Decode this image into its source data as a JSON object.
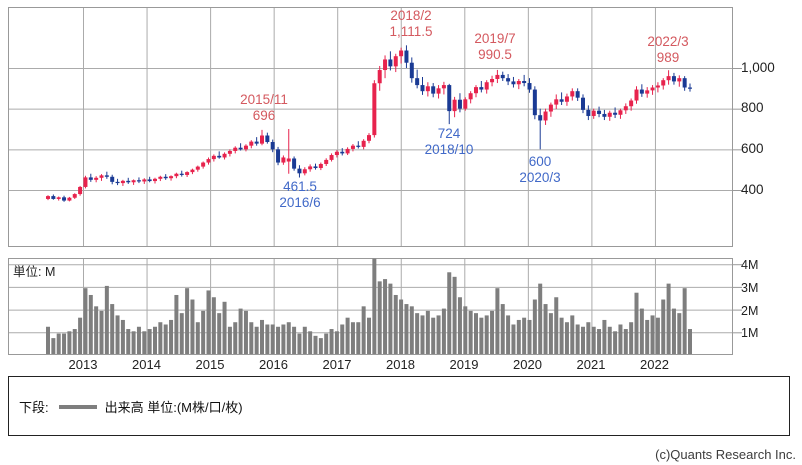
{
  "colors": {
    "up": "#e7234d",
    "down": "#1a3a94",
    "volume_bar": "#7e7e7e",
    "grid": "#ababab",
    "border": "#999999",
    "ann_red": "#d4595f",
    "ann_blue": "#4169c8",
    "axis_text": "#222222"
  },
  "legend": {
    "prefix": "下段:",
    "label": "出来高 単位:(M株/口/枚)"
  },
  "footer": {
    "copyright": "(c)Quants Research Inc."
  },
  "chart_data": {
    "type": "candlestick+volume-bar",
    "title": "",
    "price_axis": {
      "side": "right",
      "ticks": [
        400,
        600,
        800,
        1000
      ],
      "labels": [
        "400",
        "600",
        "800",
        "1,000"
      ]
    },
    "volume_axis": {
      "side": "right",
      "unit_label": "単位: M",
      "ticks": [
        1,
        2,
        3,
        4
      ],
      "labels": [
        "1M",
        "2M",
        "3M",
        "4M"
      ]
    },
    "x_axis": {
      "years": [
        "2013",
        "2014",
        "2015",
        "2016",
        "2017",
        "2018",
        "2019",
        "2020",
        "2021",
        "2022"
      ],
      "grid": true
    },
    "annotations": [
      {
        "kind": "high",
        "line1": "2018/2",
        "line2": "1,111.5"
      },
      {
        "kind": "high",
        "line1": "2019/7",
        "line2": "990.5"
      },
      {
        "kind": "high",
        "line1": "2022/3",
        "line2": "989"
      },
      {
        "kind": "high",
        "line1": "2015/11",
        "line2": "696"
      },
      {
        "kind": "low",
        "line1": "724",
        "line2": "2018/10"
      },
      {
        "kind": "low",
        "line1": "600",
        "line2": "2020/3"
      },
      {
        "kind": "low",
        "line1": "461.5",
        "line2": "2016/6"
      }
    ],
    "candles_note": "monthly OHLC, 2012/07 - 2022/07, values in yen",
    "candles": [
      [
        356,
        374,
        350,
        370
      ],
      [
        370,
        378,
        352,
        356
      ],
      [
        356,
        368,
        348,
        364
      ],
      [
        364,
        372,
        342,
        348
      ],
      [
        348,
        366,
        344,
        362
      ],
      [
        362,
        384,
        356,
        380
      ],
      [
        380,
        420,
        372,
        415
      ],
      [
        415,
        470,
        408,
        462
      ],
      [
        462,
        480,
        440,
        450
      ],
      [
        450,
        468,
        438,
        460
      ],
      [
        460,
        478,
        445,
        472
      ],
      [
        472,
        490,
        455,
        465
      ],
      [
        465,
        475,
        428,
        440
      ],
      [
        440,
        455,
        424,
        434
      ],
      [
        434,
        450,
        420,
        445
      ],
      [
        445,
        460,
        430,
        438
      ],
      [
        438,
        452,
        425,
        448
      ],
      [
        448,
        462,
        434,
        442
      ],
      [
        442,
        458,
        430,
        452
      ],
      [
        452,
        465,
        438,
        444
      ],
      [
        444,
        460,
        432,
        455
      ],
      [
        455,
        470,
        444,
        465
      ],
      [
        465,
        478,
        450,
        458
      ],
      [
        458,
        472,
        446,
        468
      ],
      [
        468,
        485,
        458,
        480
      ],
      [
        480,
        495,
        466,
        474
      ],
      [
        474,
        492,
        464,
        488
      ],
      [
        488,
        505,
        478,
        500
      ],
      [
        500,
        520,
        490,
        515
      ],
      [
        515,
        540,
        505,
        535
      ],
      [
        535,
        560,
        525,
        552
      ],
      [
        552,
        575,
        540,
        568
      ],
      [
        568,
        590,
        554,
        560
      ],
      [
        560,
        585,
        550,
        578
      ],
      [
        578,
        600,
        565,
        592
      ],
      [
        592,
        615,
        580,
        608
      ],
      [
        608,
        630,
        594,
        600
      ],
      [
        600,
        625,
        590,
        618
      ],
      [
        618,
        645,
        605,
        638
      ],
      [
        638,
        660,
        618,
        628
      ],
      [
        628,
        696,
        620,
        668
      ],
      [
        668,
        682,
        628,
        636
      ],
      [
        636,
        648,
        586,
        600
      ],
      [
        600,
        612,
        522,
        535
      ],
      [
        535,
        570,
        524,
        560
      ],
      [
        540,
        700,
        480,
        555
      ],
      [
        555,
        565,
        495,
        505
      ],
      [
        505,
        522,
        461.5,
        482
      ],
      [
        482,
        512,
        472,
        502
      ],
      [
        502,
        526,
        490,
        516
      ],
      [
        516,
        530,
        500,
        508
      ],
      [
        508,
        535,
        498,
        528
      ],
      [
        528,
        556,
        518,
        548
      ],
      [
        548,
        580,
        540,
        572
      ],
      [
        572,
        596,
        560,
        588
      ],
      [
        588,
        606,
        570,
        580
      ],
      [
        580,
        610,
        572,
        602
      ],
      [
        602,
        626,
        590,
        618
      ],
      [
        618,
        640,
        604,
        612
      ],
      [
        612,
        650,
        600,
        642
      ],
      [
        642,
        680,
        630,
        670
      ],
      [
        670,
        940,
        658,
        925
      ],
      [
        925,
        1010,
        888,
        990
      ],
      [
        990,
        1062,
        950,
        1042
      ],
      [
        1042,
        1082,
        988,
        1008
      ],
      [
        1008,
        1070,
        980,
        1058
      ],
      [
        1058,
        1100,
        1022,
        1086
      ],
      [
        1086,
        1111.5,
        1000,
        1026
      ],
      [
        1026,
        1052,
        928,
        950
      ],
      [
        950,
        992,
        900,
        916
      ],
      [
        916,
        956,
        868,
        886
      ],
      [
        886,
        930,
        860,
        910
      ],
      [
        910,
        926,
        856,
        874
      ],
      [
        874,
        916,
        850,
        900
      ],
      [
        900,
        932,
        870,
        916
      ],
      [
        916,
        922,
        724,
        788
      ],
      [
        788,
        858,
        758,
        844
      ],
      [
        844,
        876,
        782,
        800
      ],
      [
        800,
        856,
        790,
        846
      ],
      [
        846,
        886,
        826,
        876
      ],
      [
        876,
        916,
        856,
        906
      ],
      [
        906,
        936,
        880,
        894
      ],
      [
        894,
        940,
        874,
        930
      ],
      [
        930,
        962,
        910,
        946
      ],
      [
        946,
        990.5,
        926,
        966
      ],
      [
        966,
        982,
        936,
        950
      ],
      [
        950,
        970,
        916,
        934
      ],
      [
        934,
        956,
        904,
        920
      ],
      [
        920,
        946,
        896,
        936
      ],
      [
        936,
        966,
        910,
        926
      ],
      [
        926,
        950,
        878,
        894
      ],
      [
        894,
        910,
        748,
        768
      ],
      [
        768,
        800,
        600,
        742
      ],
      [
        742,
        800,
        720,
        786
      ],
      [
        786,
        830,
        760,
        820
      ],
      [
        820,
        870,
        798,
        846
      ],
      [
        846,
        880,
        818,
        834
      ],
      [
        834,
        874,
        814,
        860
      ],
      [
        860,
        900,
        840,
        886
      ],
      [
        886,
        900,
        838,
        854
      ],
      [
        854,
        870,
        778,
        794
      ],
      [
        794,
        816,
        744,
        764
      ],
      [
        764,
        800,
        750,
        790
      ],
      [
        790,
        810,
        758,
        774
      ],
      [
        774,
        794,
        744,
        760
      ],
      [
        760,
        790,
        740,
        780
      ],
      [
        780,
        806,
        754,
        770
      ],
      [
        770,
        800,
        750,
        792
      ],
      [
        792,
        826,
        774,
        812
      ],
      [
        812,
        850,
        790,
        840
      ],
      [
        840,
        910,
        824,
        894
      ],
      [
        894,
        920,
        858,
        874
      ],
      [
        874,
        906,
        854,
        890
      ],
      [
        890,
        916,
        868,
        904
      ],
      [
        904,
        930,
        880,
        914
      ],
      [
        914,
        950,
        894,
        940
      ],
      [
        940,
        989,
        918,
        960
      ],
      [
        960,
        976,
        918,
        934
      ],
      [
        934,
        964,
        908,
        950
      ],
      [
        950,
        960,
        888,
        904
      ],
      [
        904,
        924,
        884,
        898
      ]
    ],
    "volumes_note": "monthly volume in millions (M)",
    "volumes": [
      1.2,
      0.7,
      0.9,
      0.9,
      1.0,
      1.1,
      1.6,
      2.9,
      2.6,
      2.1,
      1.9,
      3.0,
      2.2,
      1.7,
      1.5,
      1.1,
      1.0,
      1.2,
      1.0,
      1.1,
      1.2,
      1.4,
      1.3,
      1.5,
      2.6,
      1.8,
      2.9,
      2.4,
      1.4,
      1.9,
      2.8,
      2.5,
      1.8,
      2.3,
      1.2,
      1.4,
      2.0,
      1.9,
      1.4,
      1.2,
      1.5,
      1.3,
      1.3,
      1.2,
      1.3,
      1.4,
      1.2,
      0.9,
      1.2,
      1.0,
      0.8,
      0.7,
      0.9,
      1.1,
      1.0,
      1.3,
      1.6,
      1.4,
      1.4,
      2.1,
      1.6,
      4.2,
      3.2,
      3.3,
      3.1,
      2.6,
      2.4,
      2.2,
      2.1,
      1.8,
      1.7,
      1.9,
      1.6,
      1.7,
      2.0,
      3.6,
      3.4,
      2.5,
      2.1,
      1.9,
      1.8,
      1.6,
      1.7,
      1.9,
      2.9,
      2.2,
      1.7,
      1.3,
      1.5,
      1.6,
      1.5,
      2.4,
      3.1,
      2.2,
      1.8,
      2.5,
      1.6,
      1.4,
      1.7,
      1.3,
      1.2,
      1.4,
      1.2,
      1.1,
      1.5,
      1.2,
      1.0,
      1.3,
      1.1,
      1.4,
      2.7,
      2.0,
      1.5,
      1.7,
      1.6,
      2.4,
      3.1,
      2.0,
      1.8,
      2.9,
      1.1
    ]
  }
}
